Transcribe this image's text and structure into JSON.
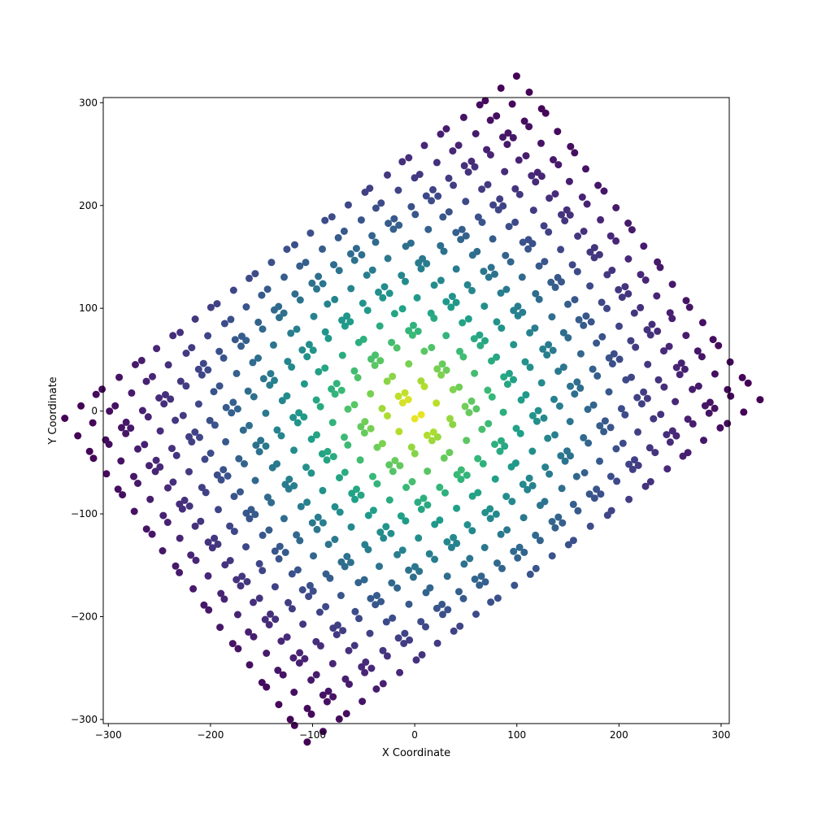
{
  "chart_data": {
    "type": "scatter",
    "title": "",
    "xlabel": "X Coordinate",
    "ylabel": "Y Coordinate",
    "xlim": [
      -305,
      308
    ],
    "ylim": [
      -304,
      305
    ],
    "xticks": [
      -300,
      -200,
      -100,
      0,
      100,
      200,
      300
    ],
    "yticks": [
      -300,
      -200,
      -100,
      0,
      100,
      200,
      300
    ],
    "xtick_labels": [
      "−300",
      "−200",
      "−100",
      "0",
      "100",
      "200",
      "300"
    ],
    "ytick_labels": [
      "−300",
      "−200",
      "−100",
      "0",
      "100",
      "200",
      "300"
    ],
    "grid": false,
    "legend": "none",
    "colormap": "viridis",
    "color_by": "distance from center (far = dark purple, near = yellow)",
    "rotation_deg": 37,
    "lattice": {
      "description": "perturbed square lattice rotated about the origin",
      "grid_u_range": [
        -274,
        274
      ],
      "grid_v_range": [
        -196,
        196
      ],
      "step": 15.6,
      "cluster_offset": 4.2,
      "approx_point_count": 900
    },
    "extent": {
      "x": [
        -276,
        282
      ],
      "y": [
        -278,
        279
      ]
    },
    "colors": {
      "viridis": [
        "#440154",
        "#482878",
        "#3e4989",
        "#31688e",
        "#26828e",
        "#1f9e89",
        "#35b779",
        "#6ece58",
        "#b5de2b",
        "#fde725"
      ]
    }
  }
}
